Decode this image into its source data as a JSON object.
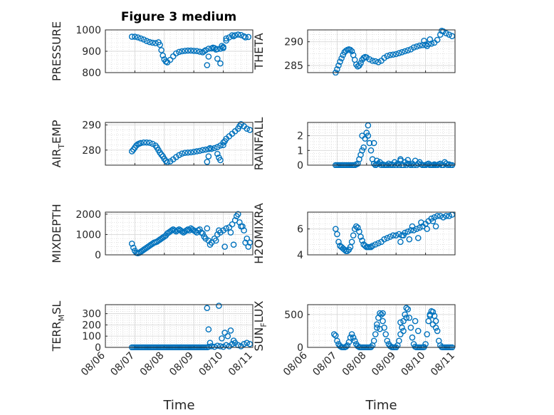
{
  "figure": {
    "title": "Figure 3 medium"
  },
  "chart_data": [
    {
      "type": "scatter",
      "id": "pressure",
      "ylabel": "PRESSURE",
      "yticks": [
        "800",
        "900",
        "1000"
      ],
      "ylim": [
        800,
        1000
      ],
      "grid": true,
      "x": [
        6.9,
        7.0,
        7.1,
        7.2,
        7.3,
        7.4,
        7.5,
        7.6,
        7.7,
        7.8,
        7.85,
        7.9,
        7.95,
        8.0,
        8.05,
        8.1,
        8.2,
        8.3,
        8.4,
        8.5,
        8.6,
        8.7,
        8.8,
        8.9,
        9.0,
        9.1,
        9.2,
        9.3,
        9.35,
        9.4,
        9.5,
        9.6,
        9.65,
        9.7,
        9.75,
        9.8,
        9.9,
        10.0,
        10.1,
        10.2,
        10.3,
        10.35,
        10.4,
        10.5,
        10.6,
        10.7,
        10.75,
        10.85
      ],
      "y": [
        968,
        968,
        965,
        960,
        955,
        948,
        943,
        940,
        938,
        942,
        930,
        905,
        880,
        862,
        852,
        848,
        860,
        876,
        890,
        897,
        900,
        902,
        903,
        903,
        902,
        901,
        898,
        895,
        900,
        905,
        912,
        913,
        917,
        915,
        908,
        910,
        912,
        915,
        960,
        965,
        975,
        970,
        975,
        978,
        976,
        970,
        965,
        967
      ],
      "outliers": {
        "x": [
          9.45,
          9.5,
          9.8,
          9.9,
          9.95,
          10.0,
          10.1
        ],
        "y": [
          835,
          875,
          865,
          843,
          925,
          920,
          950
        ]
      }
    },
    {
      "type": "scatter",
      "id": "theta",
      "ylabel": "THETA",
      "yticks": [
        "285",
        "290"
      ],
      "ylim": [
        283.5,
        292.5
      ],
      "grid": true,
      "x": [
        6.95,
        7.0,
        7.05,
        7.1,
        7.15,
        7.2,
        7.25,
        7.3,
        7.35,
        7.4,
        7.45,
        7.5,
        7.55,
        7.6,
        7.65,
        7.7,
        7.75,
        7.8,
        7.85,
        7.9,
        7.95,
        8.0,
        8.1,
        8.2,
        8.3,
        8.4,
        8.5,
        8.6,
        8.7,
        8.8,
        8.9,
        9.0,
        9.1,
        9.2,
        9.3,
        9.4,
        9.5,
        9.6,
        9.7,
        9.8,
        9.9,
        10.0,
        10.1,
        10.2,
        10.3,
        10.4,
        10.5,
        10.55,
        10.6,
        10.7,
        10.8,
        10.9
      ],
      "y": [
        283.5,
        284.2,
        285.0,
        285.8,
        286.5,
        287.2,
        287.8,
        288.1,
        288.3,
        288.4,
        288.3,
        288.0,
        287.2,
        286.2,
        285.2,
        284.8,
        285.0,
        285.5,
        286.2,
        286.6,
        286.8,
        286.7,
        286.3,
        286.0,
        285.9,
        285.7,
        286.0,
        286.6,
        287.0,
        287.2,
        287.3,
        287.4,
        287.6,
        287.8,
        288.0,
        288.2,
        288.4,
        288.8,
        289.0,
        289.2,
        289.3,
        289.4,
        289.5,
        289.6,
        289.8,
        290.4,
        291.5,
        292.3,
        292.2,
        291.8,
        291.5,
        291.2
      ],
      "outliers": {
        "x": [
          9.95,
          10.05,
          10.15
        ],
        "y": [
          290.2,
          289.1,
          290.5
        ]
      }
    },
    {
      "type": "scatter",
      "id": "air_temp",
      "ylabel_main": "AIR",
      "ylabel_sub": "T",
      "ylabel_tail": "EMP",
      "yticks": [
        "280",
        "290"
      ],
      "ylim": [
        274,
        291
      ],
      "grid": true,
      "x": [
        6.9,
        6.95,
        7.0,
        7.05,
        7.1,
        7.15,
        7.2,
        7.3,
        7.4,
        7.5,
        7.6,
        7.7,
        7.75,
        7.8,
        7.85,
        7.9,
        7.95,
        8.0,
        8.05,
        8.1,
        8.2,
        8.3,
        8.4,
        8.5,
        8.6,
        8.7,
        8.8,
        8.9,
        9.0,
        9.1,
        9.2,
        9.3,
        9.4,
        9.5,
        9.6,
        9.7,
        9.8,
        9.9,
        10.0,
        10.1,
        10.2,
        10.3,
        10.4,
        10.5,
        10.55,
        10.6,
        10.7,
        10.8,
        10.9
      ],
      "y": [
        279.5,
        280.2,
        281.0,
        281.8,
        282.3,
        282.6,
        282.8,
        283.0,
        283.0,
        282.9,
        282.5,
        281.8,
        281.0,
        280.0,
        279.0,
        278.2,
        277.5,
        276.5,
        275.7,
        275.2,
        275.5,
        276.3,
        277.2,
        278.0,
        278.6,
        278.9,
        279.0,
        279.1,
        279.3,
        279.5,
        279.7,
        280.0,
        280.2,
        280.4,
        280.5,
        280.8,
        281.2,
        281.8,
        283.0,
        284.5,
        285.5,
        286.5,
        287.5,
        288.5,
        289.5,
        290.3,
        289.5,
        288.5,
        288.0
      ],
      "outliers": {
        "x": [
          9.45,
          9.5,
          9.55,
          9.8,
          9.85,
          9.9,
          10.0,
          10.05
        ],
        "y": [
          275.3,
          277.5,
          280.8,
          278.5,
          277.0,
          276.0,
          282.0,
          283.5
        ]
      }
    },
    {
      "type": "scatter",
      "id": "rainfall",
      "ylabel": "RAINFALL",
      "yticks": [
        "0",
        "1",
        "2"
      ],
      "ylim": [
        0,
        2.9
      ],
      "grid": true,
      "x": [
        6.95,
        7.0,
        7.05,
        7.1,
        7.15,
        7.2,
        7.25,
        7.3,
        7.35,
        7.4,
        7.45,
        7.5,
        7.55,
        7.6,
        7.65,
        7.7,
        7.75,
        7.8,
        7.85,
        7.9,
        7.95,
        8.0,
        8.05,
        8.1,
        8.15,
        8.2,
        8.25,
        8.3,
        8.35,
        8.4,
        8.45,
        8.5,
        8.55,
        8.6,
        8.65,
        8.7,
        8.75,
        8.8,
        8.85,
        8.9,
        8.95,
        9.0,
        9.05,
        9.1,
        9.15,
        9.2,
        9.25,
        9.3,
        9.35,
        9.4,
        9.45,
        9.5,
        9.55,
        9.6,
        9.65,
        9.7,
        9.75,
        9.8,
        9.85,
        9.9,
        9.95,
        10.0,
        10.05,
        10.1,
        10.15,
        10.2,
        10.25,
        10.3,
        10.35,
        10.4,
        10.45,
        10.5,
        10.55,
        10.6,
        10.65,
        10.7,
        10.75,
        10.8,
        10.85,
        10.9
      ],
      "y": [
        0,
        0,
        0,
        0,
        0,
        0,
        0,
        0,
        0,
        0,
        0,
        0,
        0,
        0,
        0.05,
        0.1,
        0.4,
        0.7,
        1.0,
        1.2,
        1.8,
        2.2,
        2.7,
        1.5,
        1.0,
        0.4,
        0.1,
        0,
        0.05,
        0.1,
        0.2,
        0,
        0.05,
        0,
        0,
        0,
        0.1,
        0,
        0.05,
        0,
        0.2,
        0,
        0.1,
        0,
        0.3,
        0,
        0,
        0.2,
        0,
        0.1,
        0.05,
        0,
        0.1,
        0,
        0.3,
        0,
        0.1,
        0.2,
        0.05,
        0,
        0,
        0,
        0.05,
        0.1,
        0,
        0,
        0,
        0.05,
        0,
        0,
        0.05,
        0.1,
        0,
        0,
        0.2,
        0.1,
        0,
        0.05,
        0,
        0
      ],
      "outliers": {
        "x": [
          7.85,
          8.05,
          8.25,
          8.35,
          9.15,
          9.4
        ],
        "y": [
          2.0,
          2.0,
          1.5,
          0.3,
          0.4,
          0.35
        ]
      }
    },
    {
      "type": "scatter",
      "id": "mixdepth",
      "ylabel": "MIXDEPTH",
      "yticks": [
        "0",
        "1000",
        "2000"
      ],
      "ylim": [
        0,
        2100
      ],
      "grid": true,
      "x": [
        6.9,
        6.95,
        7.0,
        7.05,
        7.1,
        7.15,
        7.2,
        7.25,
        7.3,
        7.35,
        7.4,
        7.45,
        7.5,
        7.55,
        7.6,
        7.65,
        7.7,
        7.75,
        7.8,
        7.85,
        7.9,
        7.95,
        8.0,
        8.05,
        8.1,
        8.15,
        8.2,
        8.25,
        8.3,
        8.35,
        8.4,
        8.45,
        8.5,
        8.55,
        8.6,
        8.65,
        8.7,
        8.75,
        8.8,
        8.85,
        8.9,
        8.95,
        9.0,
        9.05,
        9.1,
        9.15,
        9.2,
        9.25,
        9.3,
        9.35,
        9.4,
        9.5,
        9.6,
        9.7,
        9.8,
        9.9,
        10.0,
        10.1,
        10.2,
        10.3,
        10.4,
        10.45,
        10.5,
        10.55,
        10.6,
        10.7,
        10.8,
        10.9
      ],
      "y": [
        550,
        350,
        200,
        100,
        80,
        100,
        150,
        200,
        250,
        300,
        350,
        400,
        450,
        500,
        550,
        600,
        620,
        650,
        700,
        750,
        800,
        850,
        900,
        950,
        1050,
        1100,
        1150,
        1200,
        1250,
        1200,
        1150,
        1200,
        1250,
        1200,
        1150,
        1100,
        1150,
        1200,
        1250,
        1200,
        1300,
        1250,
        1200,
        1150,
        1100,
        1200,
        1250,
        1100,
        1050,
        900,
        800,
        700,
        600,
        800,
        1000,
        1100,
        1200,
        1300,
        1350,
        1500,
        1700,
        1900,
        2000,
        1600,
        1400,
        1200,
        800,
        600
      ],
      "outliers": {
        "x": [
          9.45,
          9.55,
          9.75,
          9.85,
          10.05,
          10.25,
          10.35,
          10.65,
          10.75,
          10.85
        ],
        "y": [
          1300,
          500,
          700,
          1200,
          400,
          1100,
          500,
          1400,
          600,
          400
        ]
      }
    },
    {
      "type": "scatter",
      "id": "h2omixra",
      "ylabel": "H2OMIXRA",
      "yticks": [
        "4",
        "6"
      ],
      "ylim": [
        4,
        7.3
      ],
      "grid": true,
      "x": [
        6.95,
        7.0,
        7.05,
        7.1,
        7.15,
        7.2,
        7.25,
        7.3,
        7.35,
        7.4,
        7.45,
        7.5,
        7.55,
        7.6,
        7.65,
        7.7,
        7.75,
        7.8,
        7.85,
        7.9,
        7.95,
        8.0,
        8.05,
        8.1,
        8.15,
        8.2,
        8.3,
        8.4,
        8.5,
        8.6,
        8.7,
        8.8,
        8.9,
        9.0,
        9.1,
        9.2,
        9.3,
        9.4,
        9.5,
        9.6,
        9.7,
        9.8,
        9.9,
        10.0,
        10.1,
        10.2,
        10.3,
        10.4,
        10.5,
        10.6,
        10.7,
        10.8,
        10.9
      ],
      "y": [
        6.0,
        5.6,
        5.0,
        4.7,
        4.6,
        4.5,
        4.4,
        4.3,
        4.3,
        4.4,
        4.6,
        5.0,
        5.5,
        6.0,
        6.2,
        6.1,
        5.8,
        5.4,
        5.1,
        4.8,
        4.7,
        4.6,
        4.6,
        4.6,
        4.6,
        4.7,
        4.8,
        4.9,
        5.0,
        5.2,
        5.3,
        5.4,
        5.5,
        5.5,
        5.6,
        5.5,
        5.7,
        5.8,
        5.9,
        5.9,
        6.0,
        6.1,
        6.2,
        6.4,
        6.6,
        6.8,
        6.9,
        7.0,
        7.0,
        6.9,
        7.0,
        7.0,
        7.1
      ],
      "outliers": {
        "x": [
          9.15,
          9.25,
          9.45,
          9.55,
          9.75,
          9.85,
          10.05,
          10.25,
          10.35
        ],
        "y": [
          5.0,
          5.5,
          5.2,
          6.2,
          5.3,
          6.5,
          6.0,
          6.6,
          6.2
        ]
      }
    },
    {
      "type": "scatter",
      "id": "terr_msl",
      "ylabel_main": "TERR",
      "ylabel_sub": "M",
      "ylabel_tail": "SL",
      "yticks": [
        "0",
        "100",
        "200",
        "300"
      ],
      "ylim": [
        0,
        380
      ],
      "grid": true,
      "xticks": [
        "08/06",
        "08/07",
        "08/08",
        "08/09",
        "08/10",
        "08/11"
      ],
      "xlim": [
        6,
        11
      ],
      "xlabel": "Time",
      "x": [
        6.9,
        6.95,
        7.0,
        7.05,
        7.1,
        7.15,
        7.2,
        7.25,
        7.3,
        7.35,
        7.4,
        7.45,
        7.5,
        7.55,
        7.6,
        7.65,
        7.7,
        7.75,
        7.8,
        7.85,
        7.9,
        7.95,
        8.0,
        8.05,
        8.1,
        8.15,
        8.2,
        8.25,
        8.3,
        8.35,
        8.4,
        8.45,
        8.5,
        8.55,
        8.6,
        8.65,
        8.7,
        8.75,
        8.8,
        8.85,
        8.9,
        8.95,
        9.0,
        9.05,
        9.1,
        9.15,
        9.2,
        9.25,
        9.3,
        9.35,
        9.4,
        9.45,
        9.5,
        9.6,
        9.7,
        9.8,
        9.9,
        10.0,
        10.1,
        10.2,
        10.3,
        10.4,
        10.5,
        10.6,
        10.7,
        10.8,
        10.9
      ],
      "y": [
        0,
        0,
        0,
        0,
        0,
        0,
        0,
        0,
        0,
        0,
        0,
        0,
        0,
        0,
        0,
        0,
        0,
        0,
        0,
        0,
        0,
        0,
        0,
        0,
        0,
        0,
        0,
        0,
        0,
        0,
        0,
        0,
        0,
        0,
        0,
        0,
        0,
        0,
        0,
        0,
        0,
        0,
        0,
        0,
        0,
        0,
        0,
        0,
        0,
        0,
        0,
        0,
        5,
        10,
        5,
        15,
        10,
        5,
        20,
        10,
        30,
        40,
        20,
        10,
        30,
        40,
        30
      ],
      "outliers": {
        "x": [
          9.45,
          9.5,
          9.55,
          9.85,
          9.95,
          10.05,
          10.15,
          10.25,
          10.35
        ],
        "y": [
          350,
          160,
          40,
          370,
          80,
          130,
          100,
          150,
          60
        ]
      }
    },
    {
      "type": "scatter",
      "id": "sun_flux",
      "ylabel_main": "SUN",
      "ylabel_sub": "F",
      "ylabel_tail": "LUX",
      "yticks": [
        "0",
        "500"
      ],
      "ylim": [
        0,
        650
      ],
      "grid": true,
      "xticks": [
        "08/06",
        "08/07",
        "08/08",
        "08/09",
        "08/10",
        "08/11"
      ],
      "xlim": [
        6,
        11
      ],
      "xlabel": "Time",
      "x": [
        6.9,
        6.95,
        7.0,
        7.05,
        7.1,
        7.15,
        7.2,
        7.25,
        7.3,
        7.35,
        7.4,
        7.45,
        7.5,
        7.55,
        7.6,
        7.65,
        7.7,
        7.75,
        7.8,
        7.85,
        7.9,
        7.95,
        8.0,
        8.05,
        8.1,
        8.15,
        8.2,
        8.25,
        8.3,
        8.35,
        8.4,
        8.45,
        8.5,
        8.55,
        8.6,
        8.65,
        8.7,
        8.75,
        8.8,
        8.85,
        8.9,
        8.95,
        9.0,
        9.05,
        9.1,
        9.15,
        9.2,
        9.25,
        9.3,
        9.35,
        9.4,
        9.45,
        9.5,
        9.55,
        9.6,
        9.65,
        9.7,
        9.75,
        9.8,
        9.85,
        9.9,
        9.95,
        10.0,
        10.05,
        10.1,
        10.15,
        10.2,
        10.25,
        10.3,
        10.35,
        10.4,
        10.45,
        10.5,
        10.55,
        10.6,
        10.65,
        10.7,
        10.75,
        10.8,
        10.85,
        10.9
      ],
      "y": [
        200,
        180,
        100,
        50,
        20,
        5,
        0,
        0,
        10,
        30,
        80,
        150,
        200,
        150,
        100,
        50,
        20,
        5,
        0,
        0,
        0,
        0,
        0,
        0,
        0,
        5,
        30,
        100,
        200,
        300,
        450,
        520,
        500,
        400,
        300,
        200,
        100,
        50,
        20,
        5,
        0,
        0,
        0,
        30,
        100,
        200,
        300,
        400,
        500,
        600,
        580,
        450,
        300,
        150,
        50,
        10,
        0,
        0,
        0,
        0,
        0,
        5,
        50,
        200,
        400,
        500,
        550,
        540,
        480,
        400,
        250,
        100,
        30,
        5,
        0,
        0,
        0,
        0,
        0,
        0,
        0
      ],
      "outliers": {
        "x": [
          8.35,
          8.45,
          8.55,
          9.15,
          9.25,
          9.35,
          9.65,
          9.75,
          10.15,
          10.25,
          10.35
        ],
        "y": [
          350,
          280,
          520,
          380,
          250,
          450,
          400,
          250,
          480,
          350,
          300
        ]
      }
    }
  ]
}
